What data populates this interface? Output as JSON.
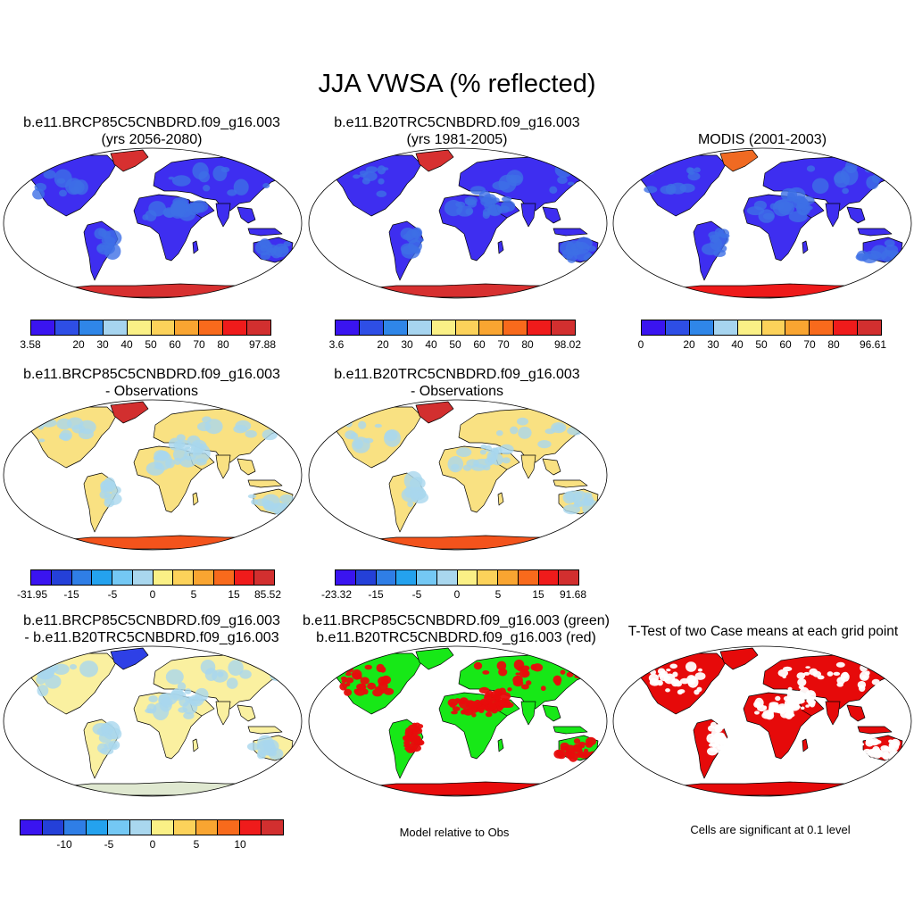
{
  "title": "JJA VWSA (% reflected)",
  "colors": {
    "scale_abs": [
      "#3a14f0",
      "#2e4ee6",
      "#2f86e8",
      "#a6d4ef",
      "#faf086",
      "#fcd25a",
      "#f9a531",
      "#f86a1c",
      "#ef1b1b",
      "#d22f2f"
    ],
    "scale_diff": [
      "#3a14f0",
      "#2440d8",
      "#2f7ee6",
      "#24a2ee",
      "#74c8f4",
      "#a9d7ee",
      "#faf086",
      "#fcd25a",
      "#f9a531",
      "#f86a1c",
      "#ef1b1b",
      "#d22f2f"
    ],
    "model_green": "#17e817",
    "model_red": "#e80c0c",
    "ttest_red": "#e60a0a"
  },
  "panels": [
    {
      "title1": "b.e11.BRCP85C5CNBDRD.f09_g16.003",
      "title2": "(yrs 2056-2080)",
      "fill": "#3e2ef0",
      "land2": "#3d6fe6",
      "antarctic": "#d73030",
      "greenland": "#d73030"
    },
    {
      "title1": "b.e11.B20TRC5CNBDRD.f09_g16.003",
      "title2": "(yrs 1981-2005)",
      "fill": "#3e2ef0",
      "land2": "#3d6fe6",
      "antarctic": "#d73030",
      "greenland": "#d73030"
    },
    {
      "title1": "MODIS (2001-2003)",
      "title2": "",
      "fill": "#3e2ef0",
      "land2": "#3d6fe6",
      "antarctic": "#ee1a1a",
      "greenland": "#f06a22"
    },
    {
      "title1": "b.e11.BRCP85C5CNBDRD.f09_g16.003",
      "title2": "- Observations",
      "fill": "#f9e182",
      "land2": "#a9d7ee",
      "antarctic": "#f3531c",
      "greenland": "#d22f2f"
    },
    {
      "title1": "b.e11.B20TRC5CNBDRD.f09_g16.003",
      "title2": "- Observations",
      "fill": "#f9e182",
      "land2": "#a9d7ee",
      "antarctic": "#f3531c",
      "greenland": "#d22f2f"
    },
    {
      "title1": "b.e11.BRCP85C5CNBDRD.f09_g16.003",
      "title2": "- b.e11.B20TRC5CNBDRD.f09_g16.003",
      "fill": "#faf0a0",
      "land2": "#a9d7ee",
      "antarctic": "#dfe8d0",
      "greenland": "#2e40e6"
    },
    {
      "title1": "b.e11.BRCP85C5CNBDRD.f09_g16.003 (green)",
      "title2": "b.e11.B20TRC5CNBDRD.f09_g16.003 (red)",
      "fill": "#17e817",
      "land2": "#e80c0c",
      "antarctic": "#e80c0c",
      "greenland": "#17e817"
    },
    {
      "title1": "T-Test of two Case means at each grid point",
      "title2": "",
      "fill": "#e60a0a",
      "land2": "#ffffff",
      "antarctic": "#e60a0a",
      "greenland": "#e60a0a"
    }
  ],
  "colorbars": [
    {
      "scale": "abs",
      "labels": [
        "3.58",
        "20",
        "30",
        "40",
        "50",
        "60",
        "70",
        "80",
        "97.88"
      ]
    },
    {
      "scale": "abs",
      "labels": [
        "3.6",
        "20",
        "30",
        "40",
        "50",
        "60",
        "70",
        "80",
        "98.02"
      ]
    },
    {
      "scale": "abs",
      "labels": [
        "0",
        "20",
        "30",
        "40",
        "50",
        "60",
        "70",
        "80",
        "96.61"
      ]
    },
    {
      "scale": "diff",
      "labels": [
        "-31.95",
        "-15",
        "-5",
        "0",
        "5",
        "15",
        "85.52"
      ]
    },
    {
      "scale": "diff",
      "labels": [
        "-23.32",
        "-15",
        "-5",
        "0",
        "5",
        "15",
        "91.68"
      ]
    },
    {
      "scale": "diff",
      "labels": [
        "-10",
        "-5",
        "0",
        "5",
        "10"
      ]
    }
  ],
  "notes": {
    "model_relative": "Model relative to Obs",
    "significance": "Cells are significant at 0.1 level"
  }
}
